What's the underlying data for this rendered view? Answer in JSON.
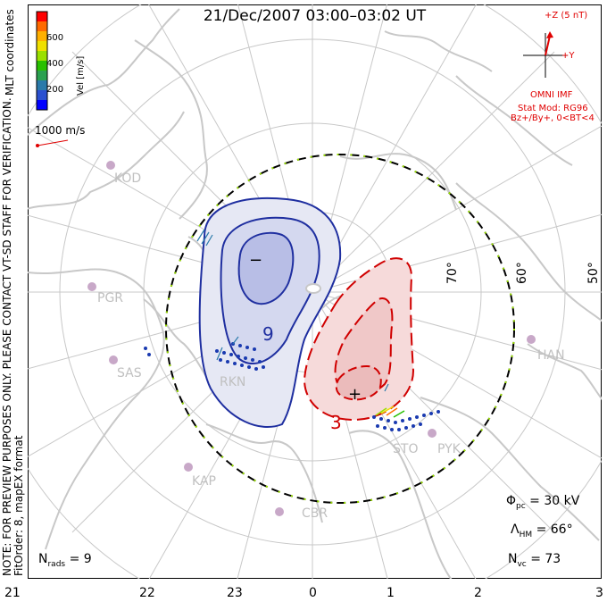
{
  "title": "21/Dec/2007 03:00–03:02 UT",
  "colorbar": {
    "ticks": [
      "600",
      "400",
      "200"
    ],
    "label": "Vel [m/s]",
    "colors": [
      "#ff0000",
      "#ff6a00",
      "#ffb000",
      "#f0e000",
      "#9ae000",
      "#28c000",
      "#2aa050",
      "#2a7aaa",
      "#2a50d0",
      "#0000ff"
    ]
  },
  "side_labels": {
    "coords": "MLT coordinates",
    "note": "NOTE: FOR PREVIEW PURPOSES ONLY. PLEASE CONTACT VT-SD STAFF FOR VERIFICATION.",
    "fit": "FitOrder: 8, mapEX format"
  },
  "scale_vector": "1000 m/s",
  "imf": {
    "z_label": "+Z (5 nT)",
    "y_label": "+Y",
    "source": "OMNI IMF",
    "stat_mod": "Stat Mod: RG96",
    "condition": "Bz+/By+, 0<BT<4"
  },
  "latitudes": [
    "70°",
    "60°",
    "50°"
  ],
  "stations": [
    "KOD",
    "PGR",
    "SAS",
    "RKN",
    "KAP",
    "CBR",
    "STO",
    "PYK",
    "HAN"
  ],
  "contours": {
    "neg_label": "9",
    "pos_label": "3",
    "neg_marker": "−",
    "pos_marker": "+"
  },
  "stats": {
    "phi_sym": "Φ",
    "phi_sub": "pc",
    "phi_val": "= 30 kV",
    "lambda_sym": "Λ",
    "lambda_sub": "HM",
    "lambda_val": "= 66°",
    "nvc_sym": "N",
    "nvc_sub": "vc",
    "nvc_val": "= 73",
    "nrads_sym": "N",
    "nrads_sub": "rads",
    "nrads_val": "= 9"
  },
  "mlt_ticks": [
    "21",
    "22",
    "23",
    "0",
    "1",
    "2",
    "3"
  ]
}
